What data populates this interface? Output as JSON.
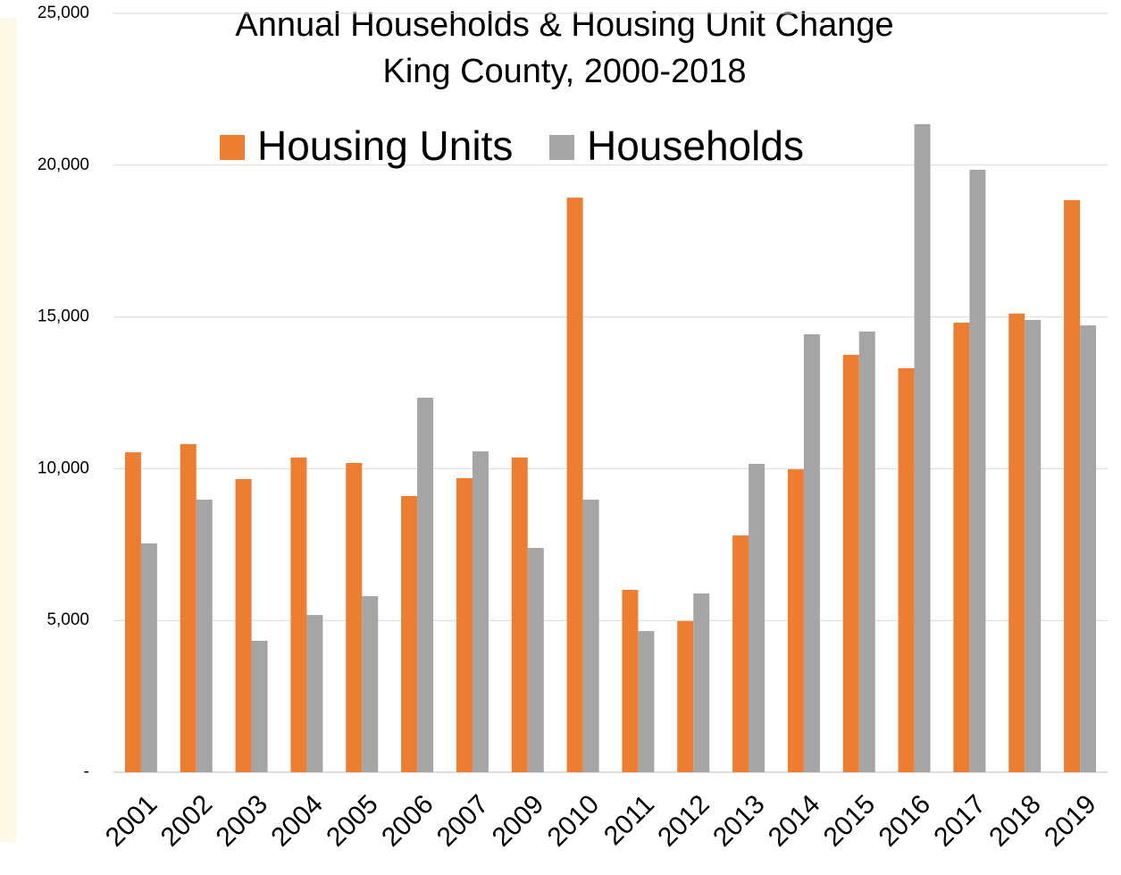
{
  "chart_data": {
    "type": "bar",
    "title": [
      "Annual Households & Housing Unit Change",
      "King County, 2000-2018"
    ],
    "categories": [
      "2001",
      "2002",
      "2003",
      "2004",
      "2005",
      "2006",
      "2007",
      "2009",
      "2010",
      "2011",
      "2012",
      "2013",
      "2014",
      "2015",
      "2016",
      "2017",
      "2018",
      "2019"
    ],
    "series": [
      {
        "name": "Housing Units",
        "color": "#ed7d31",
        "values": [
          10540,
          10810,
          9660,
          10370,
          10190,
          9100,
          9690,
          10370,
          18930,
          6010,
          4980,
          7800,
          9980,
          13750,
          13310,
          14810,
          15110,
          18850
        ]
      },
      {
        "name": "Households",
        "color": "#a5a5a5",
        "values": [
          7540,
          8980,
          4330,
          5180,
          5800,
          12340,
          10570,
          7390,
          8980,
          4650,
          5890,
          10160,
          14430,
          14520,
          21350,
          19850,
          14900,
          14720
        ]
      }
    ],
    "ylim": [
      0,
      25000
    ],
    "yticks": [
      {
        "value": 0,
        "label": "-"
      },
      {
        "value": 5000,
        "label": "5,000"
      },
      {
        "value": 10000,
        "label": "10,000"
      },
      {
        "value": 15000,
        "label": "15,000"
      },
      {
        "value": 20000,
        "label": "20,000"
      },
      {
        "value": 25000,
        "label": "25,000"
      }
    ],
    "grid": true,
    "legend": "top"
  }
}
